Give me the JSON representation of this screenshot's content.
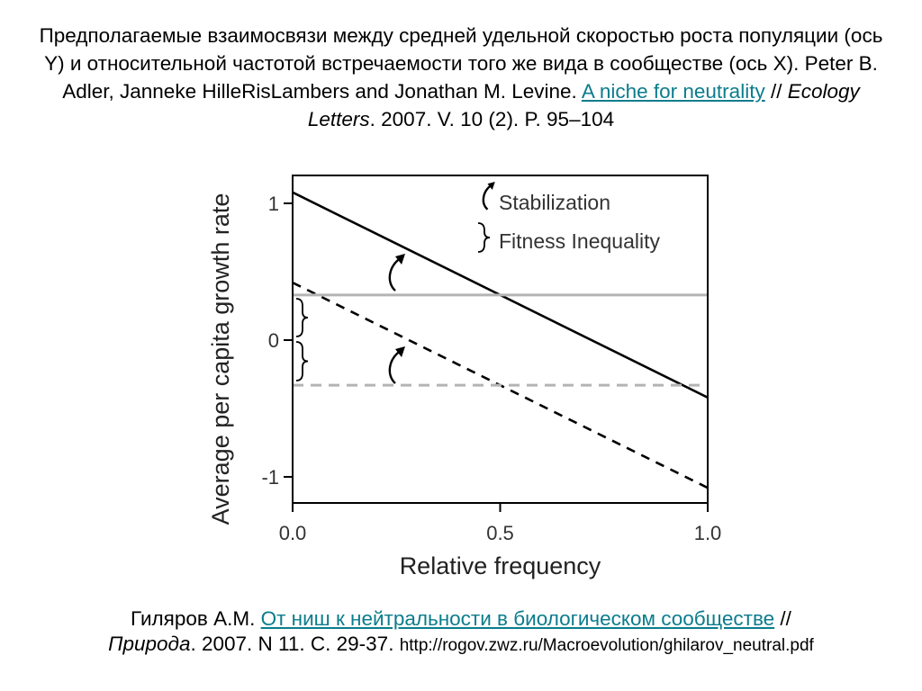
{
  "caption_top": {
    "text_before_link": "Предполагаемые взаимосвязи между средней удельной скоростью роста популяции (ось Y) и относительной частотой встречаемости того же вида в сообществе (ось X). Peter B. Adler, Janneke HilleRisLambers and Jonathan M. Levine. ",
    "link_text": "A niche for neutrality",
    "sep": " // ",
    "journal": "Ecology Letters",
    "citation_rest": ". 2007. V. 10 (2). P. 95–104"
  },
  "caption_bottom": {
    "author": "Гиляров А.М. ",
    "link_text": "От ниш к нейтральности в биологическом сообществе",
    "sep": " //",
    "journal": "Природа",
    "citation_rest": ". 2007. N 11. C. 29-37. ",
    "url": "http://rogov.zwz.ru/Macroevolution/ghilarov_neutral.pdf"
  },
  "chart_data": {
    "type": "line",
    "xlabel": "Relative frequency",
    "ylabel": "Average per capita growth rate",
    "xlim": [
      0,
      1
    ],
    "ylim": [
      -1.2,
      1.1
    ],
    "xticks": [
      0.0,
      0.5,
      1.0
    ],
    "xtick_labels": [
      "0.0",
      "0.5",
      "1.0"
    ],
    "yticks": [
      1,
      0,
      -1
    ],
    "ytick_labels": [
      "1",
      "0",
      "-1"
    ],
    "grid": false,
    "series": [
      {
        "style": "solid",
        "color": "#000000",
        "x": [
          0,
          1
        ],
        "y": [
          1.08,
          -0.42
        ]
      },
      {
        "style": "dashed",
        "color": "#000000",
        "x": [
          0,
          1
        ],
        "y": [
          0.42,
          -1.08
        ]
      },
      {
        "style": "solid",
        "color": "#b4b4b4",
        "x": [
          0,
          1
        ],
        "y": [
          0.33,
          0.33
        ]
      },
      {
        "style": "dashed",
        "color": "#b4b4b4",
        "x": [
          0,
          1
        ],
        "y": [
          -0.33,
          -0.33
        ]
      }
    ],
    "legend": {
      "placement": "top-right",
      "entries": [
        {
          "symbol": "curved-arrow",
          "label": "Stabilization"
        },
        {
          "symbol": "brace",
          "label": "Fitness Inequality"
        }
      ]
    },
    "annotations": [
      {
        "symbol": "curved-arrow",
        "x": 0.24,
        "y": 0.5
      },
      {
        "symbol": "curved-arrow",
        "x": 0.24,
        "y": -0.18
      },
      {
        "symbol": "brace",
        "x": 0.02,
        "y": 0.2
      },
      {
        "symbol": "brace",
        "x": 0.02,
        "y": -0.13
      }
    ]
  }
}
